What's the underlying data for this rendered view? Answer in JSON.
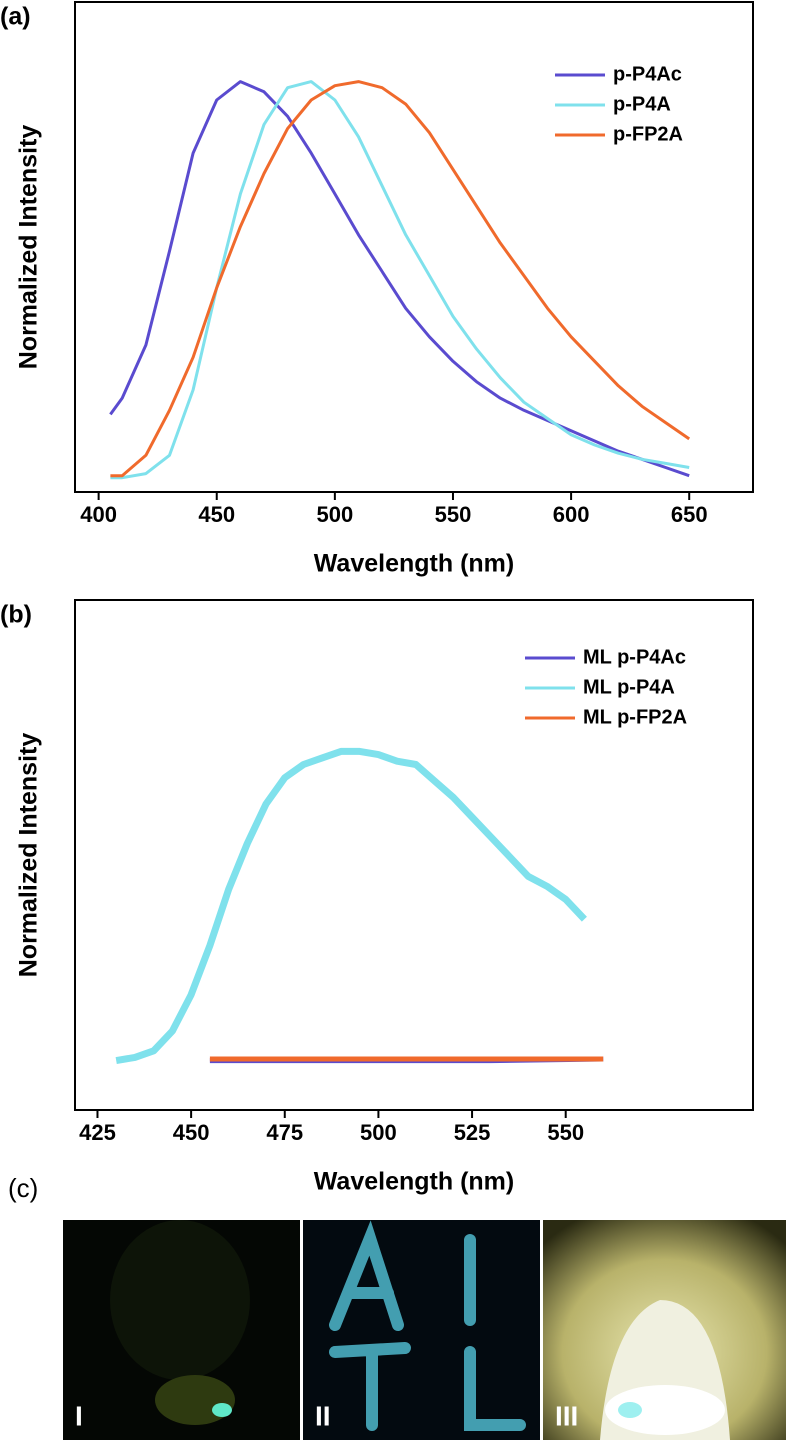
{
  "charts": [
    {
      "type": "line",
      "panel_label": "(a)",
      "xlabel": "Wavelength (nm)",
      "ylabel": "Normalized Intensity",
      "xlim": [
        390,
        677
      ],
      "xticks": [
        400,
        450,
        500,
        550,
        600,
        650
      ],
      "ylim": [
        -0.03,
        1.17
      ],
      "legend": "upper right",
      "x": [
        405,
        410,
        420,
        430,
        440,
        450,
        460,
        470,
        480,
        490,
        500,
        510,
        520,
        530,
        540,
        550,
        560,
        570,
        580,
        590,
        600,
        610,
        620,
        630,
        640,
        650
      ],
      "series": [
        {
          "name": "p-P4Ac",
          "color": "#5a4bcf",
          "values": [
            0.16,
            0.2,
            0.33,
            0.56,
            0.8,
            0.93,
            0.975,
            0.95,
            0.89,
            0.8,
            0.7,
            0.6,
            0.51,
            0.42,
            0.35,
            0.29,
            0.24,
            0.2,
            0.17,
            0.145,
            0.12,
            0.095,
            0.07,
            0.05,
            0.03,
            0.01
          ]
        },
        {
          "name": "p-P4A",
          "color": "#7fe1ec",
          "values": [
            0.005,
            0.005,
            0.015,
            0.06,
            0.22,
            0.47,
            0.7,
            0.87,
            0.96,
            0.975,
            0.93,
            0.84,
            0.72,
            0.6,
            0.5,
            0.4,
            0.32,
            0.25,
            0.19,
            0.15,
            0.11,
            0.085,
            0.065,
            0.05,
            0.04,
            0.03
          ]
        },
        {
          "name": "p-FP2A",
          "color": "#f06a2c",
          "values": [
            0.01,
            0.01,
            0.06,
            0.17,
            0.3,
            0.47,
            0.62,
            0.75,
            0.86,
            0.93,
            0.965,
            0.975,
            0.96,
            0.92,
            0.85,
            0.76,
            0.67,
            0.58,
            0.5,
            0.42,
            0.35,
            0.29,
            0.23,
            0.18,
            0.14,
            0.1
          ]
        }
      ]
    },
    {
      "type": "line",
      "panel_label": "(b)",
      "xlabel": "Wavelength (nm)",
      "ylabel": "Normalized Intensity",
      "xlim": [
        419,
        600
      ],
      "xticks": [
        425,
        450,
        475,
        500,
        525,
        550
      ],
      "ylim": [
        -0.15,
        1.4
      ],
      "legend": "upper right",
      "series": [
        {
          "name": "ML p-P4Ac",
          "color": "#5a4bcf",
          "x": [
            455,
            480,
            505,
            530,
            560
          ],
          "values": [
            0.0,
            0.0,
            0.0,
            0.0,
            0.005
          ]
        },
        {
          "name": "ML p-P4A",
          "color": "#7fe1ec",
          "x": [
            430,
            435,
            440,
            445,
            450,
            455,
            460,
            465,
            470,
            475,
            480,
            485,
            490,
            495,
            500,
            505,
            510,
            515,
            520,
            525,
            530,
            535,
            540,
            545,
            550,
            555
          ],
          "values": [
            0.0,
            0.01,
            0.03,
            0.09,
            0.2,
            0.35,
            0.52,
            0.66,
            0.78,
            0.86,
            0.9,
            0.92,
            0.94,
            0.94,
            0.93,
            0.91,
            0.9,
            0.85,
            0.8,
            0.74,
            0.68,
            0.62,
            0.56,
            0.53,
            0.49,
            0.43
          ]
        },
        {
          "name": "ML p-FP2A",
          "color": "#f06a2c",
          "x": [
            455,
            480,
            505,
            530,
            560
          ],
          "values": [
            0.005,
            0.005,
            0.005,
            0.005,
            0.005
          ]
        }
      ]
    }
  ],
  "photos": {
    "panel_label": "(c)",
    "labels": [
      "I",
      "II",
      "III"
    ]
  }
}
